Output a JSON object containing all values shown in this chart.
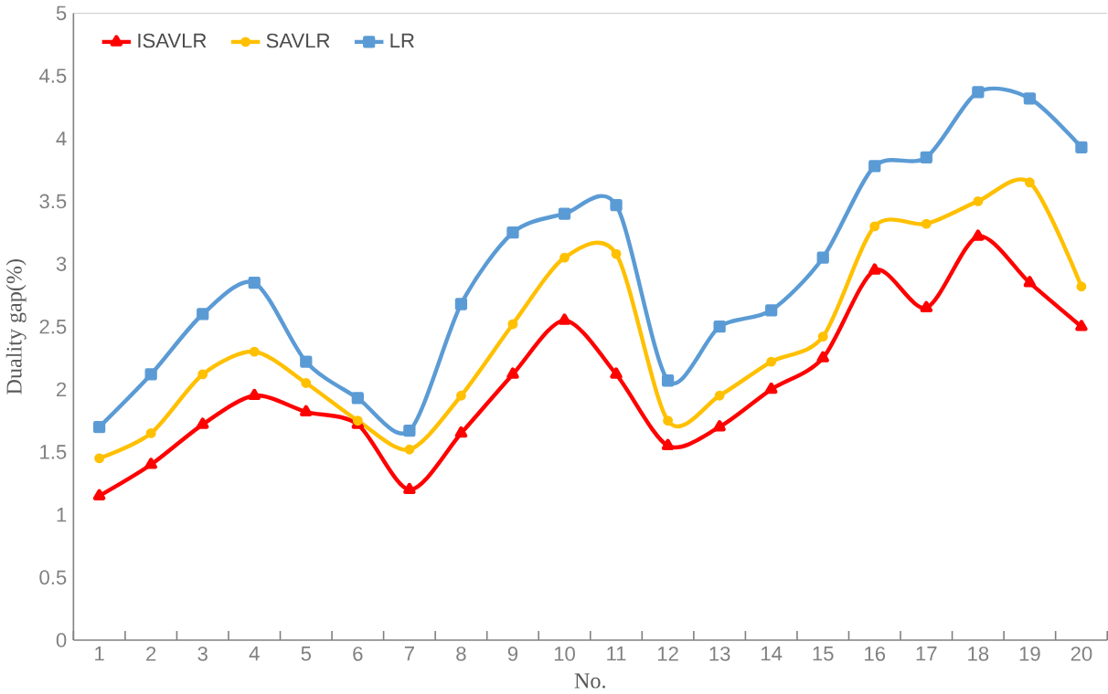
{
  "chart_data": {
    "type": "line",
    "xlabel": "No.",
    "ylabel": "Duality gap(%)",
    "categories": [
      "1",
      "2",
      "3",
      "4",
      "5",
      "6",
      "7",
      "8",
      "9",
      "10",
      "11",
      "12",
      "13",
      "14",
      "15",
      "16",
      "17",
      "18",
      "19",
      "20"
    ],
    "series": [
      {
        "name": "ISAVLR",
        "color": "#ff0000",
        "marker": "triangle",
        "values": [
          1.15,
          1.4,
          1.72,
          1.95,
          1.82,
          1.72,
          1.2,
          1.65,
          2.12,
          2.55,
          2.12,
          1.55,
          1.7,
          2.0,
          2.25,
          2.95,
          2.65,
          3.22,
          2.85,
          2.5
        ]
      },
      {
        "name": "SAVLR",
        "color": "#ffc000",
        "marker": "circle",
        "values": [
          1.45,
          1.65,
          2.12,
          2.3,
          2.05,
          1.75,
          1.52,
          1.95,
          2.52,
          3.05,
          3.08,
          1.75,
          1.95,
          2.22,
          2.42,
          3.3,
          3.32,
          3.5,
          3.65,
          2.82
        ]
      },
      {
        "name": "LR",
        "color": "#5b9bd5",
        "marker": "square",
        "values": [
          1.7,
          2.12,
          2.6,
          2.85,
          2.22,
          1.93,
          1.67,
          2.68,
          3.25,
          3.4,
          3.47,
          2.07,
          2.5,
          2.63,
          3.05,
          3.78,
          3.85,
          4.37,
          4.32,
          3.93
        ]
      }
    ],
    "ylim": [
      0,
      5
    ],
    "yticks": [
      0,
      0.5,
      1,
      1.5,
      2,
      2.5,
      3,
      3.5,
      4,
      4.5,
      5
    ],
    "legend": "top left",
    "grid": false,
    "line_style": "solid"
  }
}
